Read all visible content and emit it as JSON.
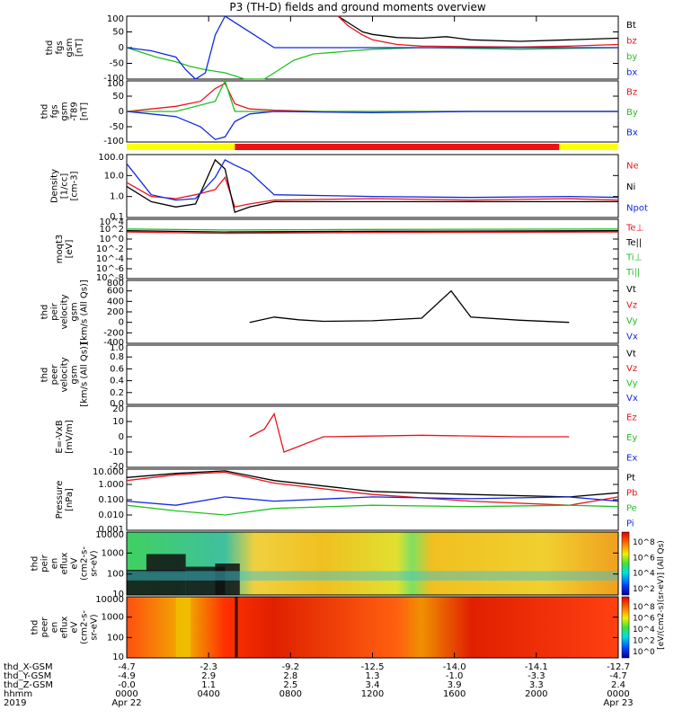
{
  "title": "P3 (TH-D) fields and ground moments overview",
  "colors": {
    "black": "#000000",
    "red": "#e8141c",
    "green": "#22c022",
    "blue": "#1028e0",
    "yellow": "#ffff00",
    "bar_red": "#ee1111"
  },
  "chart_data": [
    {
      "type": "line",
      "panel_id": "fgs",
      "ylabel": [
        "thd",
        "fgs",
        "gsm",
        "[nT]"
      ],
      "yticks": [
        "100",
        "50",
        "0",
        "-50",
        "-100"
      ],
      "ylim": [
        -100,
        100
      ],
      "legend": [
        {
          "text": "Bt",
          "color": "#000000"
        },
        {
          "text": "bz",
          "color": "#e8141c"
        },
        {
          "text": "by",
          "color": "#22c022"
        },
        {
          "text": "bx",
          "color": "#1028e0"
        }
      ],
      "series": [
        {
          "name": "Bt",
          "color": "#000000",
          "x": [
            0.43,
            0.45,
            0.47,
            0.48,
            0.5,
            0.52,
            0.55,
            0.6,
            0.65,
            0.7,
            0.8,
            0.9,
            1.0
          ],
          "y": [
            100,
            80,
            60,
            50,
            42,
            38,
            32,
            30,
            35,
            25,
            20,
            25,
            30
          ]
        },
        {
          "name": "bz",
          "color": "#e8141c",
          "x": [
            0.43,
            0.45,
            0.48,
            0.5,
            0.55,
            0.6,
            0.7,
            0.8,
            0.9,
            1.0
          ],
          "y": [
            100,
            70,
            40,
            25,
            10,
            5,
            3,
            2,
            5,
            10
          ]
        },
        {
          "name": "by",
          "color": "#22c022",
          "x": [
            0.0,
            0.03,
            0.06,
            0.1,
            0.13,
            0.16,
            0.2,
            0.24,
            0.28,
            0.31,
            0.34,
            0.38,
            0.42,
            0.46,
            0.5,
            0.6,
            0.8,
            1.0
          ],
          "y": [
            0,
            -15,
            -30,
            -45,
            -60,
            -70,
            -80,
            -100,
            -100,
            -70,
            -40,
            -20,
            -15,
            -10,
            -5,
            0,
            -5,
            0
          ]
        },
        {
          "name": "bx",
          "color": "#1028e0",
          "x": [
            0.0,
            0.05,
            0.1,
            0.12,
            0.14,
            0.16,
            0.18,
            0.2,
            0.3,
            0.5,
            0.7,
            0.9,
            1.0
          ],
          "y": [
            0,
            -10,
            -30,
            -70,
            -100,
            -80,
            40,
            100,
            0,
            0,
            0,
            0,
            0
          ]
        }
      ]
    },
    {
      "type": "line",
      "panel_id": "fgs_dsub",
      "ylabel": [
        "thd",
        "fgs",
        "gsm",
        "-T89",
        "[nT]"
      ],
      "yticks": [
        "100",
        "50",
        "0",
        "-50",
        "-100"
      ],
      "ylim": [
        -120,
        120
      ],
      "legend": [
        {
          "text": "Bz",
          "color": "#e8141c"
        },
        {
          "text": "By",
          "color": "#22c022"
        },
        {
          "text": "Bx",
          "color": "#1028e0"
        }
      ],
      "series": [
        {
          "name": "Bz",
          "color": "#e8141c",
          "x": [
            0.0,
            0.05,
            0.1,
            0.15,
            0.18,
            0.2,
            0.22,
            0.25,
            0.3,
            0.4,
            0.6,
            0.8,
            1.0
          ],
          "y": [
            0,
            10,
            20,
            40,
            90,
            110,
            30,
            10,
            5,
            0,
            0,
            0,
            0
          ]
        },
        {
          "name": "By",
          "color": "#22c022",
          "x": [
            0.0,
            0.1,
            0.18,
            0.2,
            0.22,
            0.3,
            0.5,
            0.8,
            1.0
          ],
          "y": [
            0,
            0,
            40,
            120,
            0,
            0,
            0,
            0,
            0
          ]
        },
        {
          "name": "Bx",
          "color": "#1028e0",
          "x": [
            0.0,
            0.05,
            0.1,
            0.15,
            0.18,
            0.2,
            0.22,
            0.25,
            0.3,
            0.5,
            0.7,
            1.0
          ],
          "y": [
            0,
            -10,
            -20,
            -60,
            -110,
            -100,
            -40,
            -10,
            0,
            -5,
            0,
            0
          ]
        }
      ]
    },
    {
      "type": "bar",
      "panel_id": "mode_bar",
      "segments": [
        {
          "from": 0.0,
          "to": 0.22,
          "color": "#ffff00"
        },
        {
          "from": 0.22,
          "to": 0.88,
          "color": "#ee1111"
        },
        {
          "from": 0.88,
          "to": 1.0,
          "color": "#ffff00"
        }
      ]
    },
    {
      "type": "line",
      "panel_id": "density",
      "ylabel": [
        "Density",
        "[1/cc]",
        "[cm-3]"
      ],
      "yticks": [
        "100.0",
        "10.0",
        "1.0",
        "0.1"
      ],
      "ylim": [
        0.05,
        200
      ],
      "yscale": "log",
      "legend": [
        {
          "text": "Ne",
          "color": "#e8141c"
        },
        {
          "text": "Ni",
          "color": "#000000"
        },
        {
          "text": "Npot",
          "color": "#1028e0"
        }
      ],
      "series": [
        {
          "name": "Ne",
          "color": "#e8141c",
          "x": [
            0.0,
            0.05,
            0.1,
            0.14,
            0.18,
            0.2,
            0.22,
            0.25,
            0.3,
            0.5,
            0.7,
            0.9,
            1.0
          ],
          "y": [
            5,
            0.8,
            0.6,
            1.0,
            2,
            10,
            0.2,
            0.3,
            0.5,
            0.6,
            0.5,
            0.6,
            0.5
          ]
        },
        {
          "name": "Ni",
          "color": "#000000",
          "x": [
            0.0,
            0.05,
            0.1,
            0.14,
            0.18,
            0.2,
            0.22,
            0.25,
            0.3,
            0.5,
            0.7,
            0.9,
            1.0
          ],
          "y": [
            3,
            0.4,
            0.2,
            0.3,
            100,
            30,
            0.1,
            0.2,
            0.4,
            0.4,
            0.4,
            0.4,
            0.4
          ]
        },
        {
          "name": "Npot",
          "color": "#1028e0",
          "x": [
            0.0,
            0.05,
            0.1,
            0.14,
            0.18,
            0.2,
            0.22,
            0.25,
            0.3,
            0.5,
            0.7,
            0.9,
            1.0
          ],
          "y": [
            60,
            1.0,
            0.5,
            0.6,
            10,
            100,
            50,
            20,
            1.0,
            0.8,
            0.7,
            0.8,
            0.7
          ]
        }
      ]
    },
    {
      "type": "line",
      "panel_id": "moqt3",
      "ylabel": [
        "moqt3",
        "[eV]"
      ],
      "yticks": [
        "10^4",
        "10^2",
        "10^0",
        "10^-2",
        "10^-4",
        "10^-6",
        "10^-8"
      ],
      "ylim": [
        1e-09,
        100000.0
      ],
      "yscale": "log",
      "legend": [
        {
          "text": "Te⊥",
          "color": "#e8141c"
        },
        {
          "text": "Te||",
          "color": "#000000"
        },
        {
          "text": "Ti⊥",
          "color": "#22c022"
        },
        {
          "text": "Ti||",
          "color": "#22c022"
        }
      ],
      "series": [
        {
          "name": "Te⊥",
          "color": "#e8141c",
          "x": [
            0.0,
            0.2,
            0.5,
            1.0
          ],
          "y": [
            100,
            50,
            80,
            100
          ]
        },
        {
          "name": "Ti||",
          "color": "#22c022",
          "x": [
            0.0,
            0.2,
            0.5,
            1.0
          ],
          "y": [
            500,
            300,
            400,
            500
          ]
        },
        {
          "name": "Te||",
          "color": "#000000",
          "x": [
            0.0,
            0.2,
            0.5,
            1.0
          ],
          "y": [
            200,
            100,
            150,
            200
          ]
        }
      ]
    },
    {
      "type": "line",
      "panel_id": "peir_velocity",
      "ylabel": [
        "thd",
        "peir",
        "velocity",
        "gsm",
        "[km/s (All Qs)]"
      ],
      "yticks": [
        "800",
        "600",
        "400",
        "200",
        "0",
        "-200",
        "-400"
      ],
      "ylim": [
        -400,
        800
      ],
      "legend": [
        {
          "text": "Vt",
          "color": "#000000"
        },
        {
          "text": "Vz",
          "color": "#e8141c"
        },
        {
          "text": "Vy",
          "color": "#22c022"
        },
        {
          "text": "Vx",
          "color": "#1028e0"
        }
      ],
      "series": [
        {
          "name": "Vt",
          "color": "#000000",
          "x": [
            0.25,
            0.3,
            0.35,
            0.4,
            0.5,
            0.6,
            0.66,
            0.7,
            0.8,
            0.9
          ],
          "y": [
            0,
            100,
            50,
            20,
            30,
            80,
            600,
            100,
            40,
            0
          ]
        }
      ]
    },
    {
      "type": "line",
      "panel_id": "peer_velocity",
      "ylabel": [
        "thd",
        "peer",
        "velocity",
        "gsm",
        "[km/s (All Qs)]"
      ],
      "yticks": [
        "1.0",
        "0.8",
        "0.6",
        "0.4",
        "0.2",
        "0.0"
      ],
      "ylim": [
        0,
        1
      ],
      "legend": [
        {
          "text": "Vt",
          "color": "#000000"
        },
        {
          "text": "Vz",
          "color": "#e8141c"
        },
        {
          "text": "Vy",
          "color": "#22c022"
        },
        {
          "text": "Vx",
          "color": "#1028e0"
        }
      ],
      "series": []
    },
    {
      "type": "line",
      "panel_id": "efield",
      "ylabel": [
        "E=-VxB",
        "[mV/m]"
      ],
      "yticks": [
        "20",
        "10",
        "0",
        "-10",
        "-20"
      ],
      "ylim": [
        -20,
        20
      ],
      "legend": [
        {
          "text": "Ez",
          "color": "#e8141c"
        },
        {
          "text": "Ey",
          "color": "#22c022"
        },
        {
          "text": "Ex",
          "color": "#1028e0"
        }
      ],
      "series": [
        {
          "name": "Ez",
          "color": "#e8141c",
          "x": [
            0.25,
            0.28,
            0.3,
            0.32,
            0.4,
            0.6,
            0.8,
            0.9
          ],
          "y": [
            0,
            5,
            15,
            -10,
            0,
            1,
            0,
            0
          ]
        }
      ]
    },
    {
      "type": "line",
      "panel_id": "pressure",
      "ylabel": [
        "Pressure",
        "[nPa]"
      ],
      "yticks": [
        "10.000",
        "1.000",
        "0.100",
        "0.010",
        "0.001"
      ],
      "ylim": [
        0.0008,
        20
      ],
      "yscale": "log",
      "legend": [
        {
          "text": "Pt",
          "color": "#000000"
        },
        {
          "text": "Pb",
          "color": "#e8141c"
        },
        {
          "text": "Pe",
          "color": "#22c022"
        },
        {
          "text": "Pi",
          "color": "#1028e0"
        }
      ],
      "series": [
        {
          "name": "Pt",
          "color": "#000000",
          "x": [
            0.0,
            0.1,
            0.2,
            0.3,
            0.5,
            0.7,
            0.9,
            1.0
          ],
          "y": [
            5,
            10,
            15,
            3,
            0.5,
            0.3,
            0.2,
            0.4
          ]
        },
        {
          "name": "Pb",
          "color": "#e8141c",
          "x": [
            0.0,
            0.1,
            0.2,
            0.3,
            0.5,
            0.7,
            0.9,
            1.0
          ],
          "y": [
            3,
            8,
            12,
            2,
            0.3,
            0.1,
            0.05,
            0.2
          ]
        },
        {
          "name": "Pe",
          "color": "#22c022",
          "x": [
            0.0,
            0.1,
            0.2,
            0.3,
            0.5,
            0.7,
            0.9,
            1.0
          ],
          "y": [
            0.05,
            0.02,
            0.01,
            0.03,
            0.05,
            0.04,
            0.05,
            0.04
          ]
        },
        {
          "name": "Pi",
          "color": "#1028e0",
          "x": [
            0.0,
            0.1,
            0.2,
            0.3,
            0.5,
            0.7,
            0.9,
            1.0
          ],
          "y": [
            0.1,
            0.05,
            0.2,
            0.1,
            0.2,
            0.15,
            0.2,
            0.1
          ]
        }
      ]
    },
    {
      "type": "heatmap",
      "panel_id": "peir_spec",
      "ylabel": [
        "thd",
        "peir",
        "en",
        "eflux",
        "eV",
        "(cm2-s-",
        "sr-eV)"
      ],
      "yticks": [
        "10000",
        "1000",
        "100",
        "10"
      ],
      "yscale": "log"
    },
    {
      "type": "heatmap",
      "panel_id": "peer_spec",
      "ylabel": [
        "thd",
        "peer",
        "en",
        "eflux",
        "eV",
        "(cm2-s-",
        "sr-eV)"
      ],
      "yticks": [
        "10000",
        "1000",
        "100",
        "10"
      ],
      "yscale": "log"
    }
  ],
  "colorbars": [
    {
      "labels": [
        "10^8",
        "10^6",
        "10^4",
        "10^2"
      ],
      "unit": "[eV/(cm2-s)(sr-eV)] (All Qs)"
    },
    {
      "labels": [
        "10^8",
        "10^6",
        "10^4",
        "10^2",
        "10^0"
      ],
      "unit": "[eV/(cm2-s)(sr-eV)]"
    }
  ],
  "x_axis": {
    "ticks": [
      {
        "rows": [
          "-4.7",
          "-4.9",
          "-0.0",
          "0000",
          "Apr 22"
        ]
      },
      {
        "rows": [
          "-2.3",
          "2.9",
          "1.1",
          "0400",
          ""
        ]
      },
      {
        "rows": [
          "-9.2",
          "2.8",
          "2.5",
          "0800",
          ""
        ]
      },
      {
        "rows": [
          "-12.5",
          "1.3",
          "3.4",
          "1200",
          ""
        ]
      },
      {
        "rows": [
          "-14.0",
          "-1.0",
          "3.9",
          "1600",
          ""
        ]
      },
      {
        "rows": [
          "-14.1",
          "-3.3",
          "3.3",
          "2000",
          ""
        ]
      },
      {
        "rows": [
          "-12.7",
          "-4.7",
          "2.4",
          "0000",
          "Apr 23"
        ]
      }
    ],
    "row_labels": [
      "thd_X-GSM",
      "thd_Y-GSM",
      "thd_Z-GSM",
      "hhmm",
      "2019"
    ]
  }
}
